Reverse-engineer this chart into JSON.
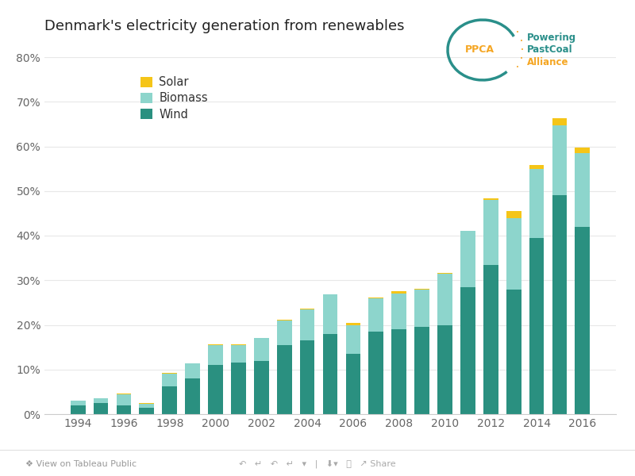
{
  "title": "Denmark's electricity generation from renewables",
  "years": [
    1994,
    1995,
    1996,
    1997,
    1998,
    1999,
    2000,
    2001,
    2002,
    2003,
    2004,
    2005,
    2006,
    2007,
    2008,
    2009,
    2010,
    2011,
    2012,
    2013,
    2014,
    2015,
    2016
  ],
  "wind": [
    0.02,
    0.025,
    0.02,
    0.014,
    0.063,
    0.08,
    0.11,
    0.115,
    0.12,
    0.155,
    0.165,
    0.18,
    0.135,
    0.185,
    0.19,
    0.195,
    0.2,
    0.285,
    0.335,
    0.28,
    0.395,
    0.49,
    0.42
  ],
  "biomass": [
    0.01,
    0.01,
    0.025,
    0.01,
    0.028,
    0.033,
    0.045,
    0.04,
    0.05,
    0.055,
    0.07,
    0.088,
    0.065,
    0.075,
    0.08,
    0.085,
    0.115,
    0.125,
    0.145,
    0.16,
    0.155,
    0.158,
    0.165
  ],
  "solar": [
    0.001,
    0.001,
    0.001,
    0.001,
    0.001,
    0.001,
    0.001,
    0.001,
    0.001,
    0.001,
    0.002,
    0.001,
    0.004,
    0.001,
    0.005,
    0.001,
    0.001,
    0.001,
    0.003,
    0.015,
    0.008,
    0.015,
    0.013
  ],
  "wind_color": "#2a9080",
  "biomass_color": "#8dd5cc",
  "solar_color": "#f5c518",
  "ylim_max": 0.8,
  "yticks": [
    0.0,
    0.1,
    0.2,
    0.3,
    0.4,
    0.5,
    0.6,
    0.7,
    0.8
  ],
  "ytick_labels": [
    "0%",
    "10%",
    "20%",
    "30%",
    "40%",
    "50%",
    "60%",
    "70%",
    "80%"
  ],
  "background_color": "#ffffff",
  "title_fontsize": 13,
  "tick_fontsize": 10,
  "bar_width": 0.65
}
